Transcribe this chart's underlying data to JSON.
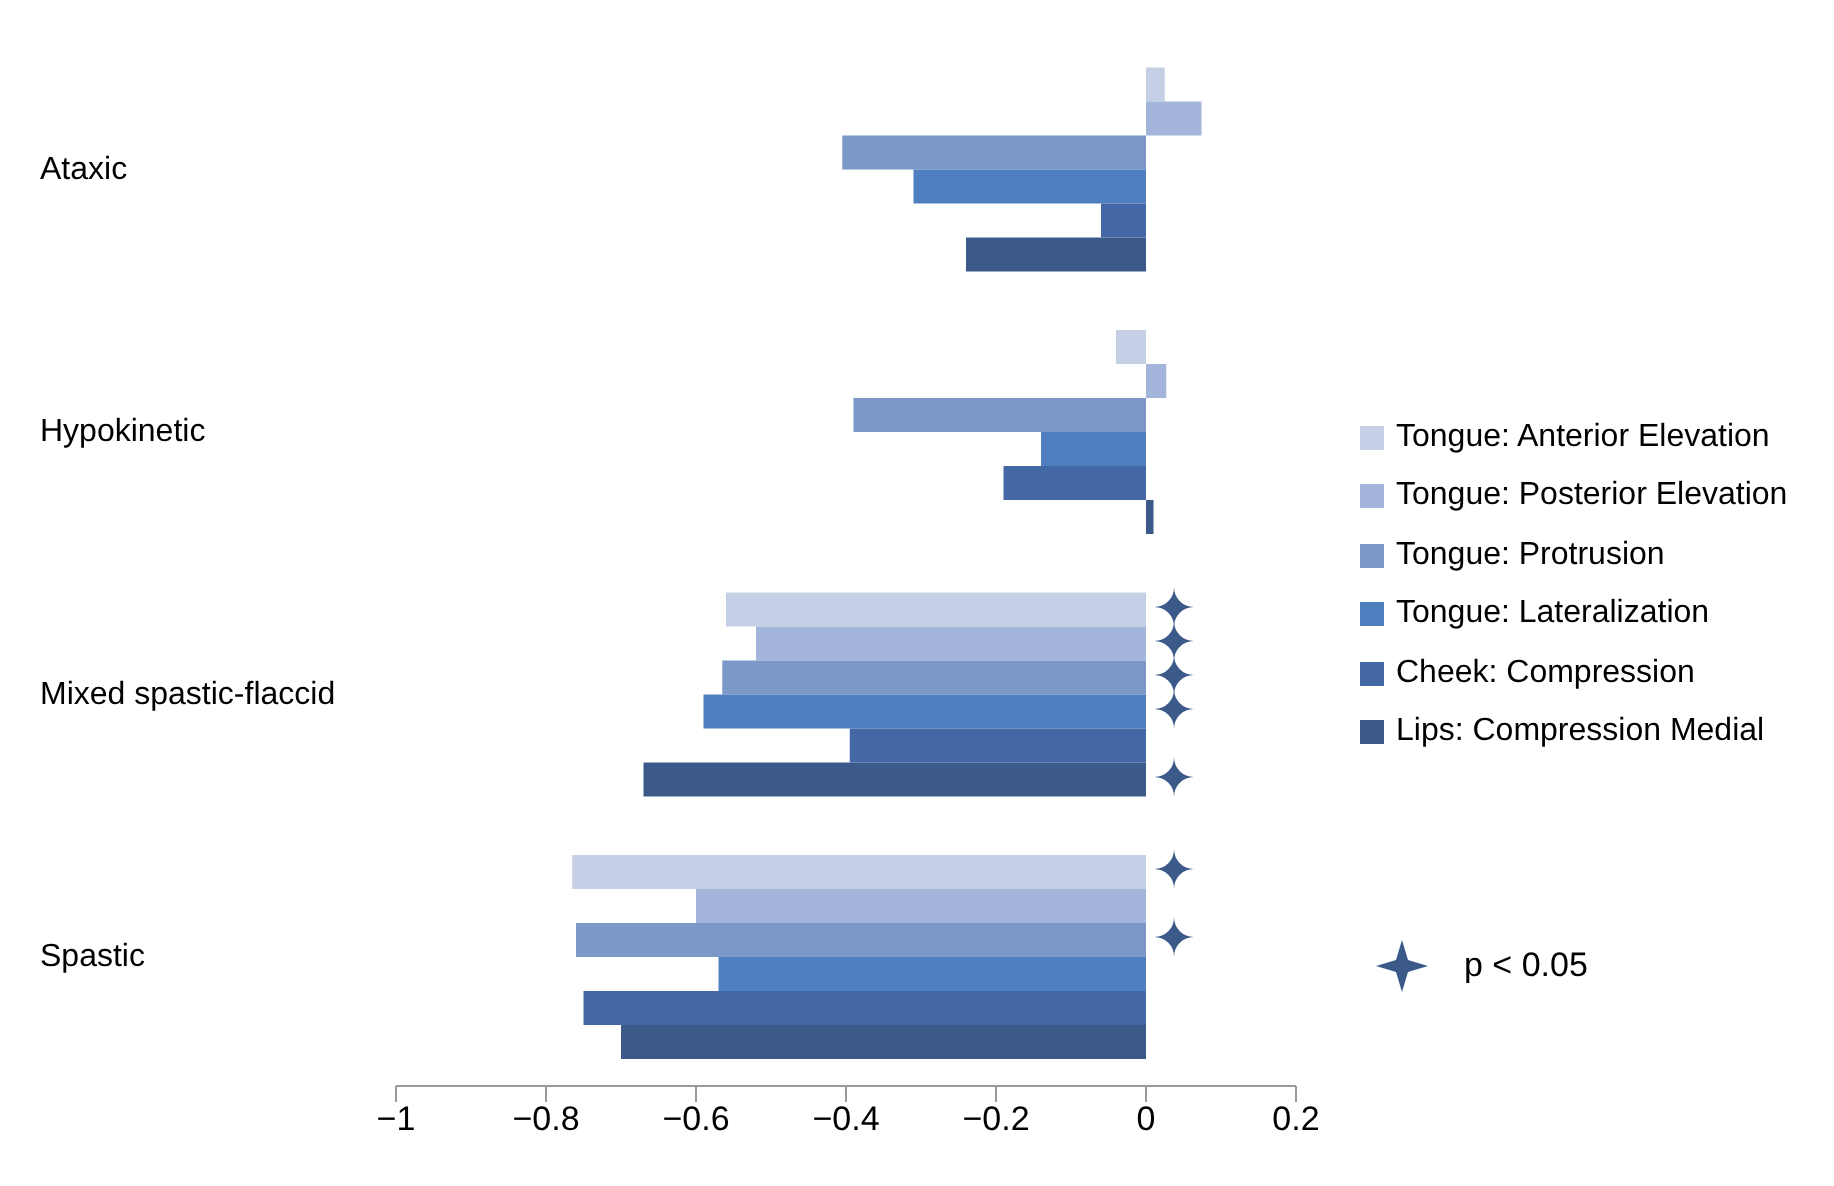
{
  "chart_data": {
    "type": "bar",
    "orientation": "horizontal",
    "categories": [
      "Ataxic",
      "Hypokinetic",
      "Mixed spastic-flaccid",
      "Spastic"
    ],
    "series": [
      {
        "name": "Tongue: Anterior Elevation",
        "color": "#c5cfe6",
        "values": [
          0.025,
          -0.04,
          -0.56,
          -0.765
        ],
        "value_labels": [
          null,
          null,
          "✦",
          "✦"
        ]
      },
      {
        "name": "Tongue: Posterior Elevation",
        "color": "#a4b5db",
        "values": [
          0.074,
          0.027,
          -0.52,
          -0.6
        ],
        "value_labels": [
          null,
          null,
          "✦",
          null
        ]
      },
      {
        "name": "Tongue: Protrusion",
        "color": "#7b98c9",
        "values": [
          -0.405,
          -0.39,
          -0.565,
          -0.76
        ],
        "value_labels": [
          null,
          null,
          "✦",
          "✦"
        ]
      },
      {
        "name": "Tongue: Lateralization",
        "color": "#4f7fbf",
        "values": [
          -0.31,
          -0.14,
          -0.59,
          -0.57
        ],
        "value_labels": [
          null,
          null,
          "✦",
          null
        ]
      },
      {
        "name": "Cheek: Compression",
        "color": "#4468a6",
        "values": [
          -0.06,
          -0.19,
          -0.395,
          -0.75
        ],
        "value_labels": [
          null,
          null,
          null,
          null
        ]
      },
      {
        "name": "Lips: Compression Medial",
        "color": "#3b5a8a",
        "values": [
          -0.24,
          0.01,
          -0.67,
          -0.7
        ],
        "value_labels": [
          null,
          null,
          "✦",
          null
        ]
      }
    ],
    "xlim": [
      -1,
      0.2
    ],
    "xticks": [
      {
        "value": -1,
        "label": "−1"
      },
      {
        "value": -0.8,
        "label": "−0.8"
      },
      {
        "value": -0.6,
        "label": "−0.6"
      },
      {
        "value": -0.4,
        "label": "−0.4"
      },
      {
        "value": -0.2,
        "label": "−0.2"
      },
      0,
      0.2
    ],
    "legend": "right",
    "annotations": [
      "p < 0.05"
    ]
  }
}
